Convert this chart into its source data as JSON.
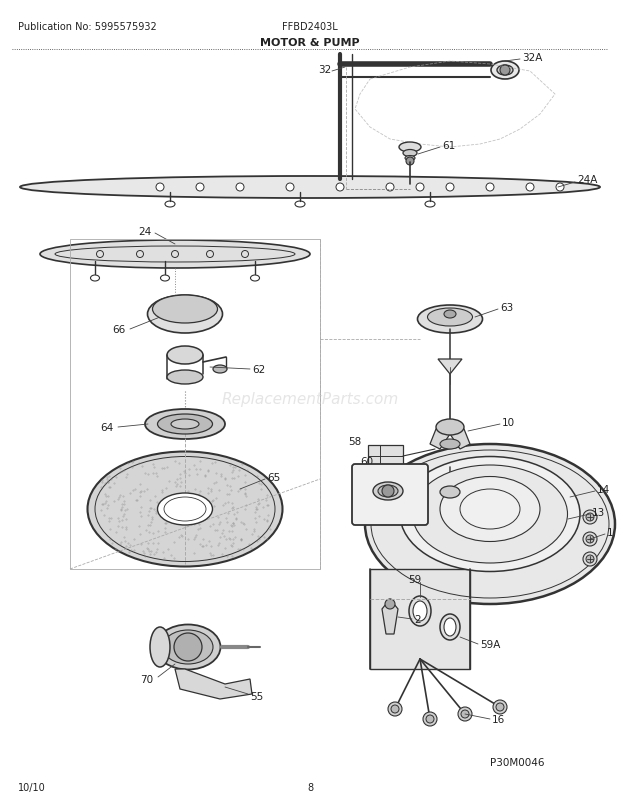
{
  "title": "MOTOR & PUMP",
  "pub_no": "Publication No: 5995575932",
  "model": "FFBD2403L",
  "date": "10/10",
  "page": "8",
  "part_id": "P30M0046",
  "watermark": "ReplacementParts.com",
  "bg_color": "#ffffff",
  "line_color": "#333333",
  "fig_w": 6.2,
  "fig_h": 8.03,
  "dpi": 100
}
